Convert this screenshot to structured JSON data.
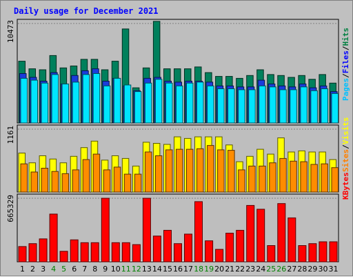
{
  "chart_data": {
    "title": "Daily usage for December 2021",
    "days": [
      "1",
      "2",
      "3",
      "4",
      "5",
      "6",
      "7",
      "8",
      "9",
      "10",
      "11",
      "12",
      "13",
      "14",
      "15",
      "16",
      "17",
      "18",
      "19",
      "20",
      "21",
      "22",
      "23",
      "24",
      "25",
      "26",
      "27",
      "28",
      "29",
      "30",
      "31"
    ],
    "weekend_days": [
      "4",
      "5",
      "11",
      "12",
      "18",
      "19",
      "25",
      "26"
    ],
    "panels": [
      {
        "type": "bar",
        "max_label": "10473",
        "ymax": 10473,
        "legend": [
          "Pages",
          "/",
          "Files",
          "/",
          "Hits"
        ],
        "legend_colors": [
          "#00c0ff",
          "#000000",
          "#0000ff",
          "#000000",
          "#008040"
        ],
        "series": [
          {
            "name": "Hits",
            "color": "#00805c",
            "values": [
              6500,
              5700,
              5600,
              7100,
              5800,
              6000,
              6700,
              6700,
              5600,
              6500,
              9900,
              3700,
              5800,
              10700,
              5700,
              5700,
              5700,
              5900,
              5300,
              4900,
              4900,
              4700,
              5000,
              5600,
              5100,
              5000,
              4800,
              5000,
              4600,
              5100,
              4200
            ]
          },
          {
            "name": "Files",
            "color": "#1a3cdc",
            "values": [
              5200,
              4800,
              4400,
              5300,
              4100,
              5000,
              5500,
              5700,
              4400,
              4700,
              3900,
              3400,
              4700,
              4800,
              4400,
              4300,
              4400,
              4400,
              4300,
              3900,
              3900,
              3800,
              3800,
              4500,
              4100,
              3900,
              3800,
              4100,
              3700,
              3900,
              3300
            ]
          },
          {
            "name": "Pages",
            "color": "#00e5ff",
            "values": [
              4700,
              4500,
              4200,
              5100,
              4100,
              4300,
              5100,
              5200,
              3900,
              4700,
              4000,
              3300,
              4200,
              4600,
              4200,
              3900,
              4200,
              4300,
              3900,
              3600,
              3600,
              3500,
              3500,
              3900,
              3800,
              3500,
              3500,
              3800,
              3400,
              3600,
              3100
            ]
          }
        ]
      },
      {
        "type": "bar",
        "max_label": "1161",
        "ymax": 1161,
        "legend": [
          "Sites",
          "/",
          "Visits"
        ],
        "legend_colors": [
          "#ff8000",
          "#000000",
          "#ffff00"
        ],
        "series": [
          {
            "name": "Visits",
            "color": "#ffff00",
            "values": [
              720,
              540,
              670,
              610,
              540,
              660,
              820,
              940,
              590,
              670,
              620,
              480,
              920,
              900,
              880,
              1020,
              990,
              1020,
              1020,
              1020,
              870,
              560,
              660,
              790,
              700,
              1000,
              740,
              760,
              740,
              740,
              600
            ]
          },
          {
            "name": "Sites",
            "color": "#ff8c00",
            "values": [
              520,
              370,
              440,
              380,
              340,
              410,
              600,
              700,
              410,
              460,
              330,
              330,
              740,
              670,
              780,
              790,
              790,
              800,
              860,
              780,
              770,
              410,
              480,
              480,
              540,
              620,
              570,
              560,
              510,
              520,
              450
            ]
          }
        ]
      },
      {
        "type": "bar",
        "max_label": "665329",
        "ymax": 665329,
        "legend": [
          "KBytes"
        ],
        "legend_colors": [
          "#ff0000"
        ],
        "series": [
          {
            "name": "KBytes",
            "color": "#ff0000",
            "values": [
              160000,
              190000,
              240000,
              500000,
              110000,
              230000,
              200000,
              200000,
              665000,
              200000,
              200000,
              180000,
              665000,
              270000,
              330000,
              190000,
              290000,
              630000,
              220000,
              130000,
              300000,
              330000,
              590000,
              550000,
              170000,
              610000,
              460000,
              170000,
              190000,
              210000,
              210000
            ]
          }
        ]
      }
    ]
  }
}
